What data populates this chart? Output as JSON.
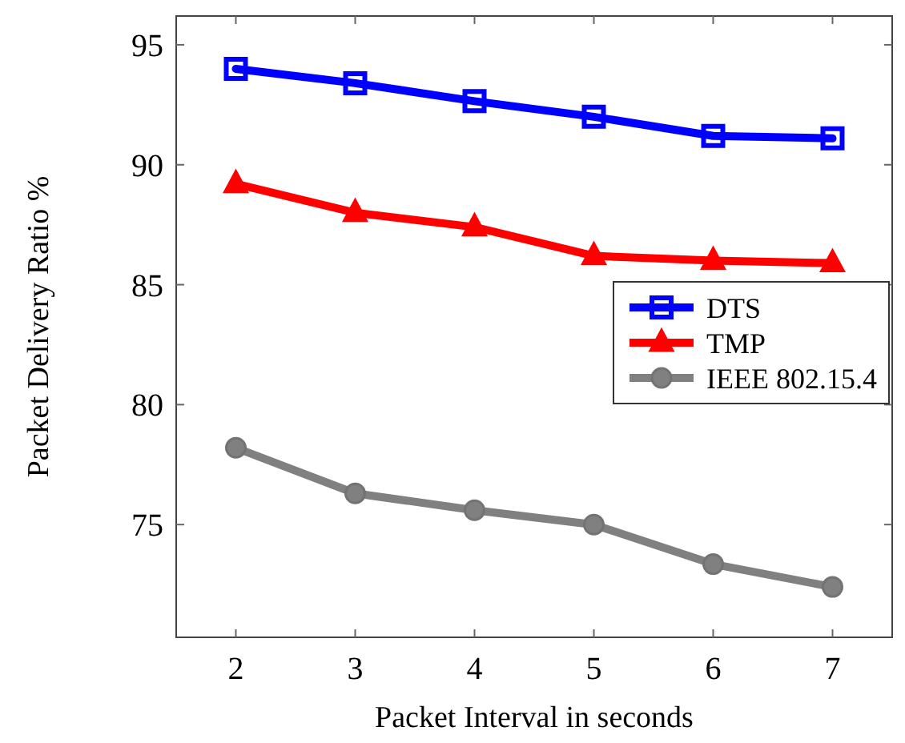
{
  "chart_data": {
    "type": "line",
    "xlabel": "Packet Interval in seconds",
    "ylabel": "Packet Delivery Ratio %",
    "x": [
      2,
      3,
      4,
      5,
      6,
      7
    ],
    "series": [
      {
        "name": "DTS",
        "color": "#0000ff",
        "marker": "square",
        "values": [
          94.0,
          93.4,
          92.65,
          92.0,
          91.2,
          91.1
        ]
      },
      {
        "name": "TMP",
        "color": "#ff0000",
        "marker": "triangle",
        "values": [
          89.2,
          88.0,
          87.4,
          86.2,
          86.0,
          85.9
        ]
      },
      {
        "name": "IEEE 802.15.4",
        "color": "#808080",
        "marker": "circle",
        "values": [
          78.2,
          76.3,
          75.6,
          75.0,
          73.35,
          72.4
        ]
      }
    ],
    "xlim": [
      1.5,
      7.5
    ],
    "ylim": [
      70.3,
      96.2
    ],
    "xticks": [
      2,
      3,
      4,
      5,
      6,
      7
    ],
    "yticks": [
      75,
      80,
      85,
      90,
      95
    ],
    "grid": false,
    "legend": "right",
    "line_style": "solid"
  }
}
